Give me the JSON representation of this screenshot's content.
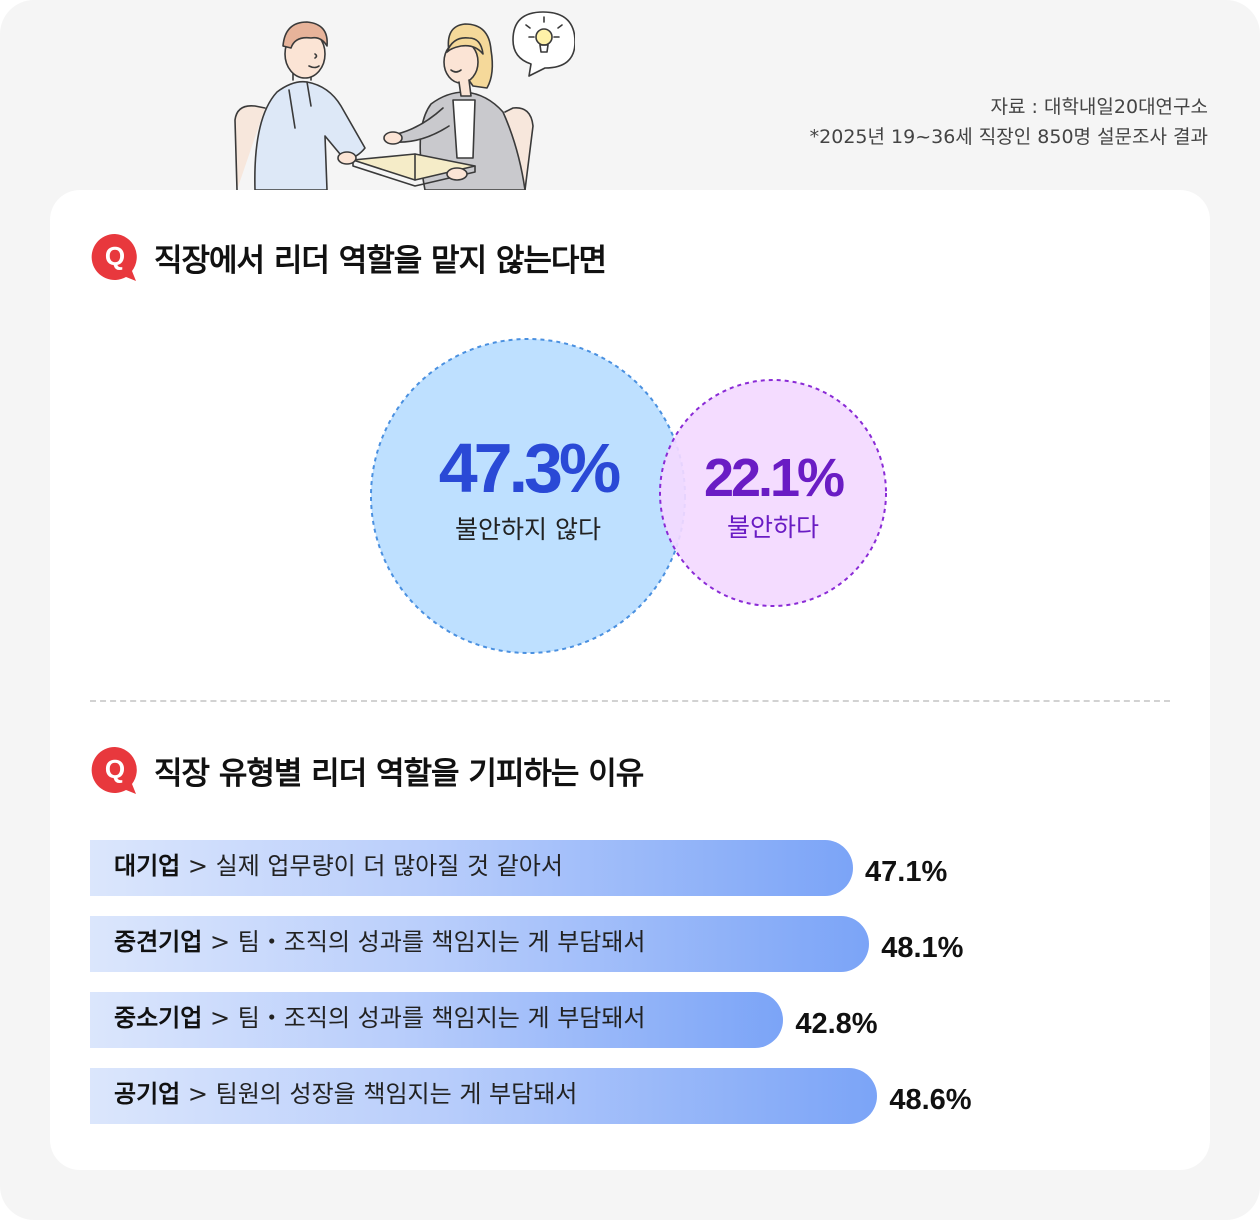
{
  "source": {
    "line1": "자료 : 대학내일20대연구소",
    "line2": "*2025년 19~36세 직장인 850명 설문조사 결과"
  },
  "q_icon_label": "Q",
  "chart_data": [
    {
      "type": "venn",
      "title": "직장에서 리더 역할을 맡지 않는다면",
      "sets": [
        {
          "label": "불안하지 않다",
          "value": 47.3,
          "display": "47.3%",
          "color": "#2a49d6",
          "fill": "#bee0ff"
        },
        {
          "label": "불안하다",
          "value": 22.1,
          "display": "22.1%",
          "color": "#6a1cc4",
          "fill": "#f3d9ff"
        }
      ]
    },
    {
      "type": "bar",
      "orientation": "horizontal",
      "title": "직장 유형별 리더 역할을 기피하는 이유",
      "categories": [
        "대기업",
        "중견기업",
        "중소기업",
        "공기업"
      ],
      "reasons": [
        "실제 업무량이 더 많아질 것 같아서",
        "팀・조직의 성과를 책임지는 게 부담돼서",
        "팀・조직의 성과를 책임지는 게 부담돼서",
        "팀원의 성장을 책임지는 게 부담돼서"
      ],
      "values": [
        47.1,
        48.1,
        42.8,
        48.6
      ],
      "labels": [
        "47.1%",
        "48.1%",
        "42.8%",
        "48.6%"
      ],
      "separator": ">"
    }
  ]
}
